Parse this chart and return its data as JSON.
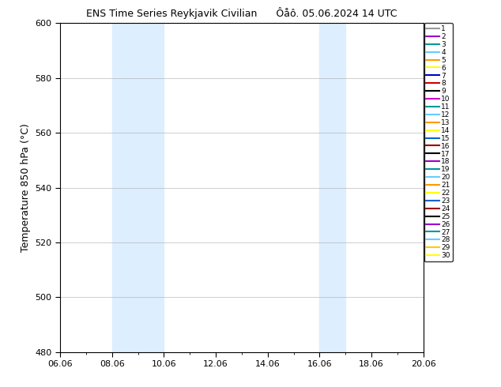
{
  "title_left": "ENS Time Series Reykjavik Civilian",
  "title_right": "Ôåô. 05.06.2024 14 UTC",
  "ylabel": "Temperature 850 hPa (°C)",
  "ylim": [
    480,
    600
  ],
  "yticks": [
    480,
    500,
    520,
    540,
    560,
    580,
    600
  ],
  "xtick_labels": [
    "06.06",
    "08.06",
    "10.06",
    "12.06",
    "14.06",
    "16.06",
    "18.06",
    "20.06"
  ],
  "xtick_positions": [
    6,
    8,
    10,
    12,
    14,
    16,
    18,
    20
  ],
  "xlim": [
    6,
    20
  ],
  "shade_bands": [
    {
      "xstart": 8.0,
      "xend": 10.0
    },
    {
      "xstart": 16.0,
      "xend": 17.0
    }
  ],
  "shade_color": "#ddeeff",
  "background_color": "#ffffff",
  "n_members": 30,
  "member_colors": [
    "#999999",
    "#9900cc",
    "#009999",
    "#66ccff",
    "#ff9900",
    "#ffff00",
    "#0000cc",
    "#cc0000",
    "#000000",
    "#cc00cc",
    "#009999",
    "#66ccff",
    "#ff9900",
    "#ffff00",
    "#0066cc",
    "#990000",
    "#000000",
    "#9900cc",
    "#009999",
    "#66ccff",
    "#ff9900",
    "#ffff00",
    "#0066cc",
    "#990000",
    "#000000",
    "#9900cc",
    "#009999",
    "#66ccff",
    "#ffcc00",
    "#ffff00"
  ],
  "fig_width": 6.34,
  "fig_height": 4.9,
  "dpi": 100,
  "title_fontsize": 9,
  "ylabel_fontsize": 9,
  "tick_fontsize": 8,
  "legend_fontsize": 6.5
}
